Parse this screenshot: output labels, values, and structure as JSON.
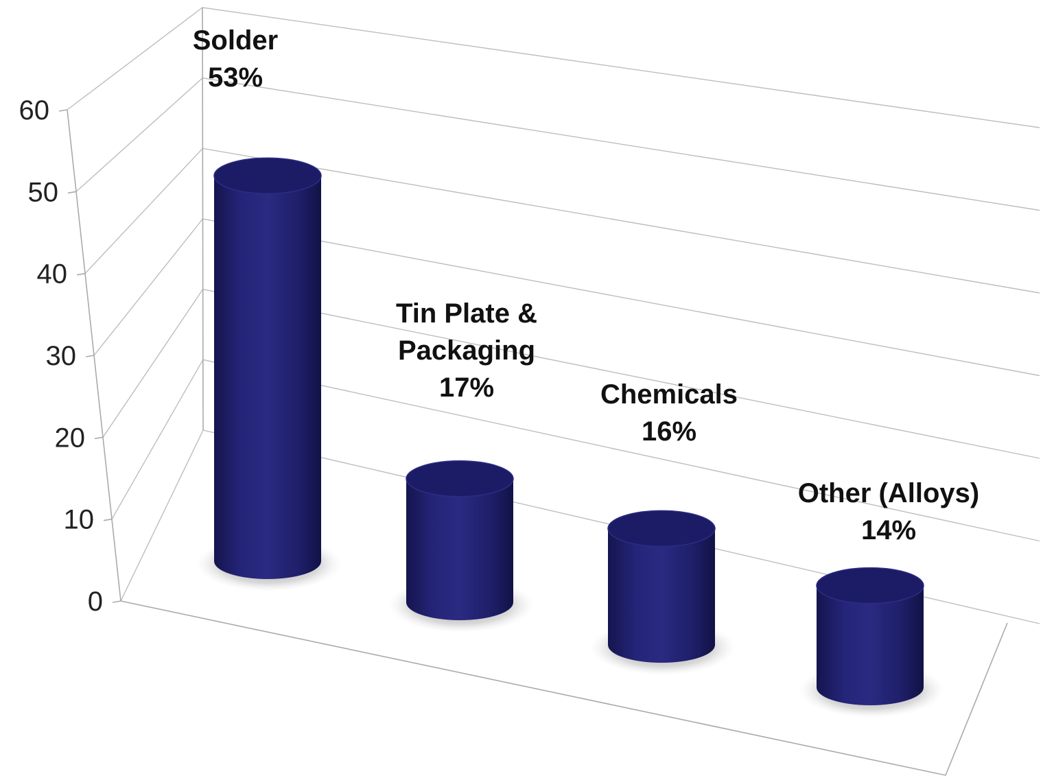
{
  "chart_data": {
    "type": "bar",
    "style": "3d-cylinder",
    "categories": [
      "Solder",
      "Tin Plate & Packaging",
      "Chemicals",
      "Other (Alloys)"
    ],
    "values": [
      53,
      17,
      16,
      14
    ],
    "data_labels": [
      [
        "Solder",
        "53%"
      ],
      [
        "Tin Plate &",
        "Packaging",
        "17%"
      ],
      [
        "Chemicals",
        "16%"
      ],
      [
        "Other (Alloys)",
        "14%"
      ]
    ],
    "y_ticks": [
      "0",
      "10",
      "20",
      "30",
      "40",
      "50",
      "60"
    ],
    "ylim": [
      0,
      60
    ],
    "grid": true,
    "legend": "none",
    "colors": {
      "bar": "#232377",
      "bar_top": "#1c1c66"
    }
  }
}
